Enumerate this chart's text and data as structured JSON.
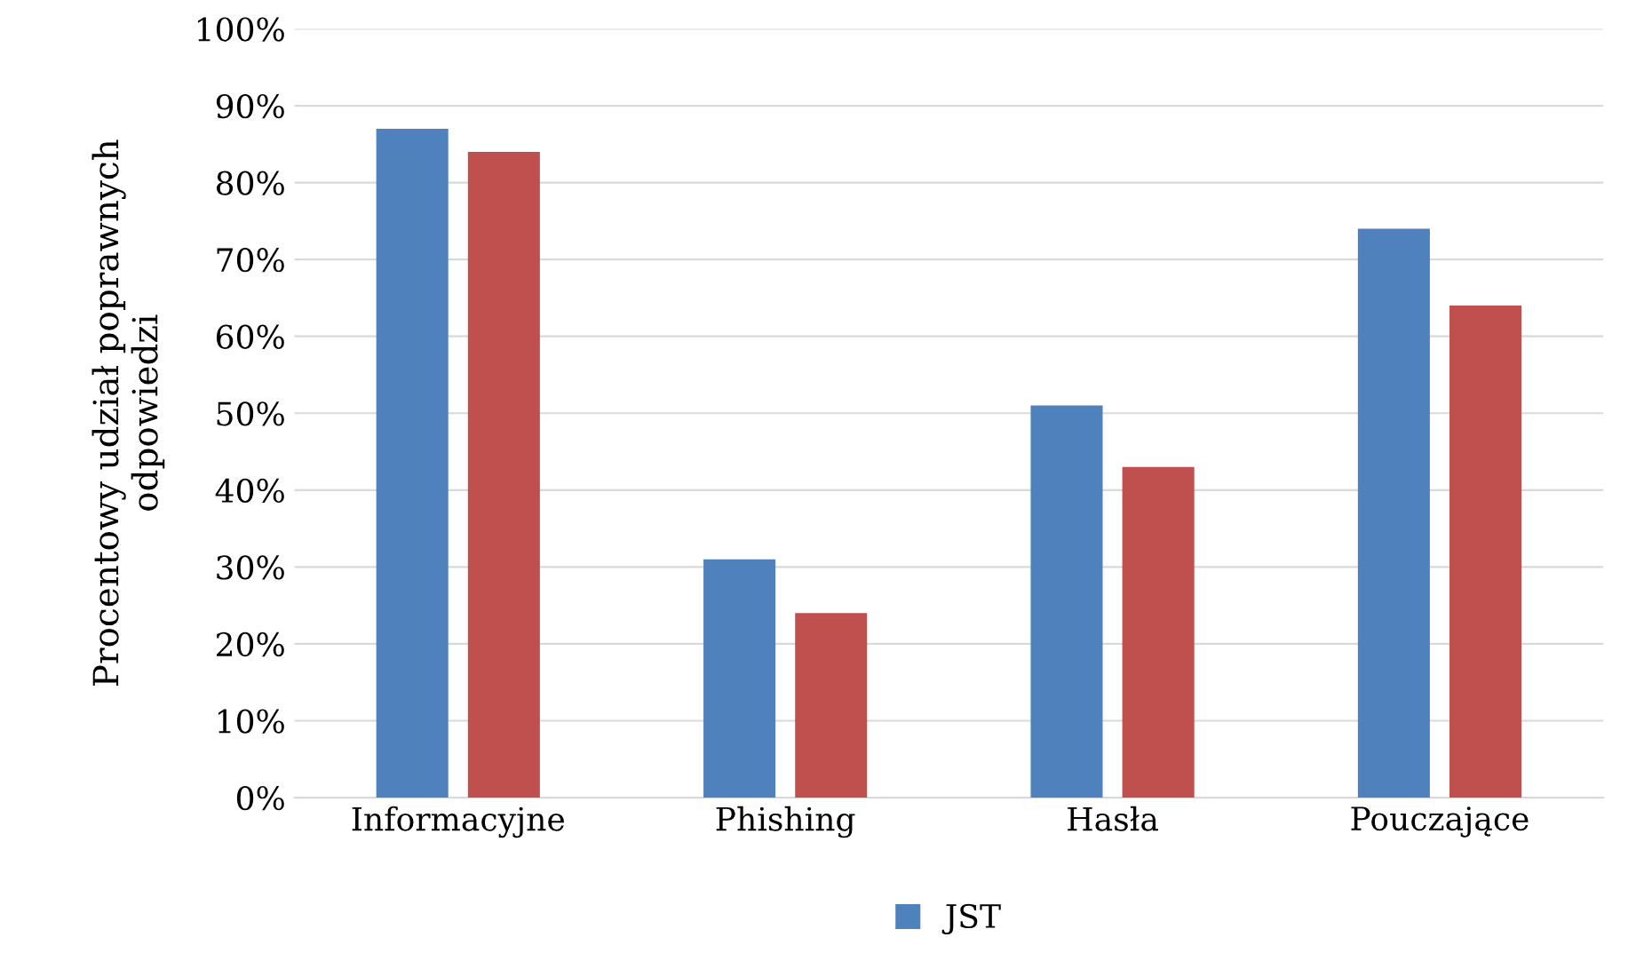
{
  "chart_data": {
    "type": "bar",
    "ylabel": "Procentowy udział poprawnych\nodpowiedzi",
    "categories": [
      "Informacyjne",
      "Phishing",
      "Hasła",
      "Pouczające"
    ],
    "series": [
      {
        "name": "JST",
        "color": "#4f81bd",
        "values": [
          87,
          31,
          51,
          74
        ]
      },
      {
        "color": "#c0504d",
        "values": [
          84,
          24,
          43,
          64
        ]
      }
    ],
    "ylim": [
      0,
      100
    ],
    "yticks": [
      {
        "value": 0,
        "label": "0%"
      },
      {
        "value": 10,
        "label": "10%"
      },
      {
        "value": 20,
        "label": "20%"
      },
      {
        "value": 30,
        "label": "30%"
      },
      {
        "value": 40,
        "label": "40%"
      },
      {
        "value": 50,
        "label": "50%"
      },
      {
        "value": 60,
        "label": "60%"
      },
      {
        "value": 70,
        "label": "70%"
      },
      {
        "value": 80,
        "label": "80%"
      },
      {
        "value": 90,
        "label": "90%"
      },
      {
        "value": 100,
        "label": "100%"
      }
    ],
    "grid": "y",
    "legend": "bottom"
  }
}
